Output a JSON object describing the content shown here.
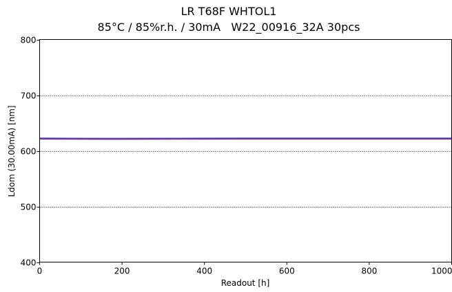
{
  "chart_data": {
    "type": "line",
    "title": "LR T68F WHTOL1",
    "subtitle": "85°C / 85%r.h. / 30mA   W22_00916_32A 30pcs",
    "xlabel": "Readout [h]",
    "ylabel": "Ldom (30.00mA) [nm]",
    "xlim": [
      0,
      1000
    ],
    "ylim": [
      400,
      800
    ],
    "xticks": [
      0,
      200,
      400,
      600,
      800,
      1000
    ],
    "yticks": [
      400,
      500,
      600,
      700,
      800
    ],
    "grid": "horizontal dotted",
    "legend": "none",
    "series": [
      {
        "color": "#5a3a8c",
        "x": [
          0,
          168,
          500,
          1000
        ],
        "y": [
          622,
          622,
          622,
          622
        ]
      },
      {
        "color": "#4a4aa8",
        "x": [
          0,
          168,
          500,
          1000
        ],
        "y": [
          622.5,
          622,
          622.5,
          622.5
        ]
      },
      {
        "color": "#6a3a8a",
        "x": [
          0,
          168,
          500,
          1000
        ],
        "y": [
          621.5,
          621,
          621.5,
          621.5
        ]
      }
    ]
  }
}
